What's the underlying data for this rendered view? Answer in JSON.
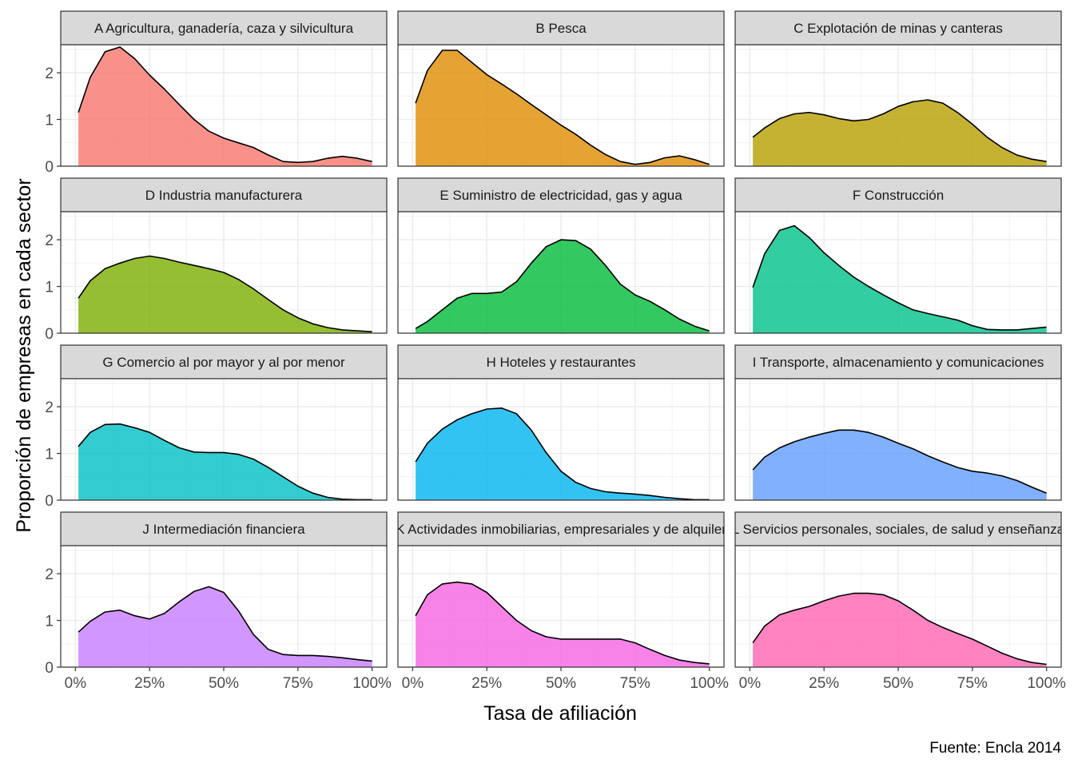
{
  "chart_data": {
    "type": "area",
    "xlabel": "Tasa de afiliación",
    "ylabel": "Proporción de empresas en cada sector",
    "caption": "Fuente: Encla 2014",
    "xlim": [
      0,
      100
    ],
    "ylim": [
      0,
      2.6
    ],
    "x_ticks": [
      0,
      25,
      50,
      75,
      100
    ],
    "x_tick_labels": [
      "0%",
      "25%",
      "50%",
      "75%",
      "100%"
    ],
    "y_ticks": [
      0,
      1,
      2
    ],
    "y_tick_labels": [
      "0",
      "1",
      "2"
    ],
    "grid": true,
    "legend": "none",
    "panels": [
      {
        "title": "A Agricultura, ganadería, caza y silvicultura",
        "color": "#F8766D",
        "x": [
          1,
          5,
          10,
          15,
          20,
          25,
          30,
          35,
          40,
          45,
          50,
          55,
          60,
          65,
          70,
          75,
          80,
          85,
          90,
          95,
          100
        ],
        "y": [
          1.15,
          1.9,
          2.45,
          2.55,
          2.3,
          1.95,
          1.65,
          1.32,
          1.0,
          0.75,
          0.6,
          0.5,
          0.4,
          0.24,
          0.1,
          0.08,
          0.1,
          0.17,
          0.21,
          0.17,
          0.1
        ]
      },
      {
        "title": "B Pesca",
        "color": "#DE8C00",
        "x": [
          1,
          5,
          10,
          15,
          20,
          25,
          30,
          35,
          40,
          45,
          50,
          55,
          60,
          65,
          70,
          75,
          80,
          85,
          90,
          95,
          100
        ],
        "y": [
          1.35,
          2.05,
          2.48,
          2.48,
          2.22,
          1.96,
          1.76,
          1.55,
          1.32,
          1.1,
          0.88,
          0.68,
          0.45,
          0.25,
          0.1,
          0.04,
          0.08,
          0.18,
          0.22,
          0.14,
          0.04
        ]
      },
      {
        "title": "C Explotación de minas y canteras",
        "color": "#B79F00",
        "x": [
          1,
          5,
          10,
          15,
          20,
          25,
          30,
          35,
          40,
          45,
          50,
          55,
          60,
          65,
          70,
          75,
          80,
          85,
          90,
          95,
          100
        ],
        "y": [
          0.62,
          0.82,
          1.02,
          1.12,
          1.15,
          1.1,
          1.02,
          0.97,
          1.0,
          1.12,
          1.28,
          1.38,
          1.42,
          1.35,
          1.15,
          0.9,
          0.62,
          0.4,
          0.24,
          0.15,
          0.1
        ]
      },
      {
        "title": "D Industria manufacturera",
        "color": "#7CAE00",
        "x": [
          1,
          5,
          10,
          15,
          20,
          25,
          30,
          35,
          40,
          45,
          50,
          55,
          60,
          65,
          70,
          75,
          80,
          85,
          90,
          95,
          100
        ],
        "y": [
          0.75,
          1.12,
          1.38,
          1.5,
          1.6,
          1.65,
          1.6,
          1.52,
          1.45,
          1.38,
          1.3,
          1.15,
          0.95,
          0.72,
          0.5,
          0.33,
          0.2,
          0.12,
          0.07,
          0.05,
          0.03
        ]
      },
      {
        "title": "E Suministro de electricidad, gas y agua",
        "color": "#00BA38",
        "x": [
          1,
          5,
          10,
          15,
          20,
          25,
          30,
          35,
          40,
          45,
          50,
          55,
          60,
          65,
          70,
          75,
          80,
          85,
          90,
          95,
          100
        ],
        "y": [
          0.1,
          0.25,
          0.5,
          0.75,
          0.85,
          0.85,
          0.88,
          1.1,
          1.5,
          1.85,
          2.0,
          1.98,
          1.8,
          1.45,
          1.05,
          0.82,
          0.68,
          0.5,
          0.3,
          0.15,
          0.05
        ]
      },
      {
        "title": "F Construcción",
        "color": "#00C08B",
        "x": [
          1,
          5,
          10,
          15,
          20,
          25,
          30,
          35,
          40,
          45,
          50,
          55,
          60,
          65,
          70,
          75,
          80,
          85,
          90,
          95,
          100
        ],
        "y": [
          0.98,
          1.7,
          2.2,
          2.3,
          2.05,
          1.72,
          1.45,
          1.2,
          1.0,
          0.82,
          0.65,
          0.5,
          0.42,
          0.35,
          0.28,
          0.16,
          0.08,
          0.07,
          0.07,
          0.1,
          0.13
        ]
      },
      {
        "title": "G Comercio al por mayor y al por menor",
        "color": "#00BFC4",
        "x": [
          1,
          5,
          10,
          15,
          20,
          25,
          30,
          35,
          40,
          45,
          50,
          55,
          60,
          65,
          70,
          75,
          80,
          85,
          90,
          95,
          100
        ],
        "y": [
          1.15,
          1.45,
          1.62,
          1.63,
          1.55,
          1.45,
          1.28,
          1.12,
          1.03,
          1.02,
          1.02,
          0.98,
          0.88,
          0.7,
          0.5,
          0.3,
          0.15,
          0.06,
          0.02,
          0.01,
          0.01
        ]
      },
      {
        "title": "H Hoteles y restaurantes",
        "color": "#00B4F0",
        "x": [
          1,
          5,
          10,
          15,
          20,
          25,
          30,
          35,
          40,
          45,
          50,
          55,
          60,
          65,
          70,
          75,
          80,
          85,
          90,
          95,
          100
        ],
        "y": [
          0.82,
          1.22,
          1.52,
          1.72,
          1.85,
          1.95,
          1.97,
          1.85,
          1.5,
          1.02,
          0.62,
          0.38,
          0.25,
          0.18,
          0.15,
          0.13,
          0.1,
          0.06,
          0.03,
          0.01,
          0.01
        ]
      },
      {
        "title": "I Transporte, almacenamiento y comunicaciones",
        "color": "#619CFF",
        "x": [
          1,
          5,
          10,
          15,
          20,
          25,
          30,
          35,
          40,
          45,
          50,
          55,
          60,
          65,
          70,
          75,
          80,
          85,
          90,
          95,
          100
        ],
        "y": [
          0.65,
          0.92,
          1.12,
          1.25,
          1.35,
          1.43,
          1.5,
          1.5,
          1.45,
          1.35,
          1.22,
          1.1,
          0.95,
          0.82,
          0.7,
          0.62,
          0.58,
          0.52,
          0.42,
          0.28,
          0.15
        ]
      },
      {
        "title": "J Intermediación financiera",
        "color": "#C77CFF",
        "x": [
          1,
          5,
          10,
          15,
          20,
          25,
          30,
          35,
          40,
          45,
          50,
          55,
          60,
          65,
          70,
          75,
          80,
          85,
          90,
          95,
          100
        ],
        "y": [
          0.75,
          0.98,
          1.18,
          1.22,
          1.1,
          1.03,
          1.15,
          1.4,
          1.62,
          1.72,
          1.6,
          1.2,
          0.7,
          0.38,
          0.27,
          0.25,
          0.25,
          0.23,
          0.2,
          0.16,
          0.13
        ]
      },
      {
        "title": "K Actividades inmobiliarias, empresariales y de alquiler",
        "color": "#F564E3",
        "x": [
          1,
          5,
          10,
          15,
          20,
          25,
          30,
          35,
          40,
          45,
          50,
          55,
          60,
          65,
          70,
          75,
          80,
          85,
          90,
          95,
          100
        ],
        "y": [
          1.1,
          1.55,
          1.78,
          1.82,
          1.78,
          1.6,
          1.3,
          1.0,
          0.78,
          0.65,
          0.6,
          0.6,
          0.6,
          0.6,
          0.6,
          0.52,
          0.38,
          0.25,
          0.15,
          0.1,
          0.07
        ]
      },
      {
        "title": "L Servicios personales, sociales, de salud y enseñanza",
        "color": "#FF64B0",
        "x": [
          1,
          5,
          10,
          15,
          20,
          25,
          30,
          35,
          40,
          45,
          50,
          55,
          60,
          65,
          70,
          75,
          80,
          85,
          90,
          95,
          100
        ],
        "y": [
          0.52,
          0.88,
          1.12,
          1.22,
          1.3,
          1.42,
          1.52,
          1.58,
          1.58,
          1.55,
          1.42,
          1.22,
          1.0,
          0.85,
          0.72,
          0.6,
          0.45,
          0.3,
          0.18,
          0.1,
          0.06
        ]
      }
    ]
  }
}
